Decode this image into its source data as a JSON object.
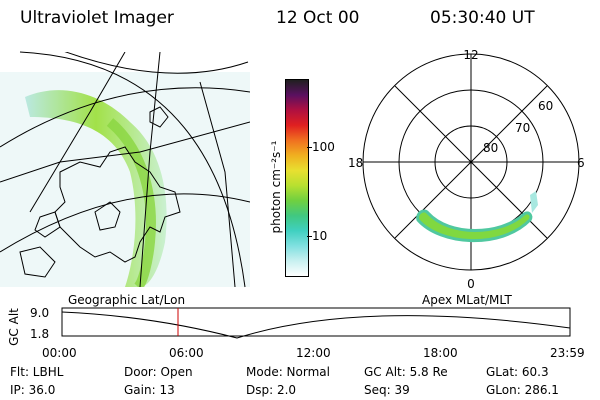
{
  "header": {
    "instrument": "Ultraviolet Imager",
    "date": "12 Oct 00",
    "time": "05:30:40 UT"
  },
  "colorbar": {
    "unit_label": "photon cm⁻²s⁻¹",
    "ticks": [
      "100",
      "10"
    ],
    "colors": [
      "#202020",
      "#5a1060",
      "#b01040",
      "#e02020",
      "#f07020",
      "#f0b020",
      "#e8e030",
      "#b8e030",
      "#70d040",
      "#40c880",
      "#40d0c0",
      "#80e0e0",
      "#c8f0f0",
      "#ffffff"
    ]
  },
  "polar_plot": {
    "labels": {
      "top": "12",
      "right": "6",
      "left": "18",
      "bottom": "0"
    },
    "rings": [
      "60",
      "70",
      "80"
    ]
  },
  "timeline": {
    "left_title": "Geographic Lat/Lon",
    "right_title": "Apex MLat/MLT",
    "axis_label": "GC Alt",
    "y_ticks": [
      "9.0",
      "1.8"
    ],
    "x_ticks": [
      "00:00",
      "06:00",
      "12:00",
      "18:00",
      "23:59"
    ],
    "marker_color": "#cc0000"
  },
  "info": {
    "row1": {
      "flt": "Flt: LBHL",
      "door": "Door: Open",
      "mode": "Mode: Normal",
      "gc_alt": "GC Alt: 5.8 Re",
      "glat": "GLat:  60.3"
    },
    "row2": {
      "ip": "IP: 36.0",
      "gain": "Gain: 13",
      "dsp": "Dsp:    2.0",
      "seq": "Seq: 39",
      "glon": "GLon: 286.1"
    }
  }
}
